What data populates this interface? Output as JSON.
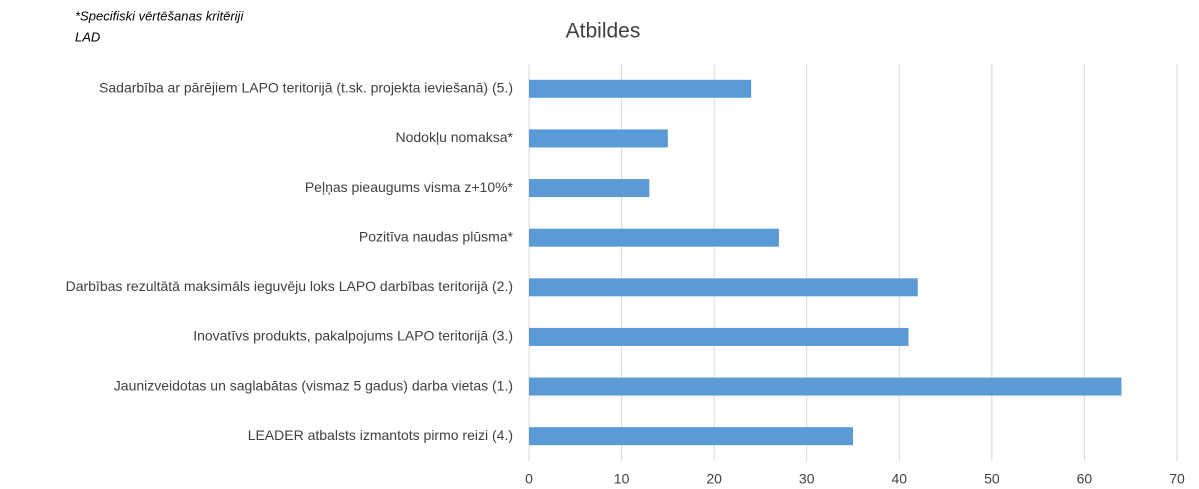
{
  "chart_data": {
    "type": "barh",
    "title": "Atbildes",
    "annotations": [
      "*Specifiski vērtēšanas kritēriji",
      "LAD"
    ],
    "categories": [
      "Sadarbība ar pārējiem LAPO teritorijā (t.sk. projekta ieviešanā) (5.)",
      "Nodokļu nomaksa*",
      "Peļņas pieaugums visma z+10%*",
      "Pozitīva naudas plūsma*",
      "Darbības rezultātā maksimāls ieguvēju loks LAPO darbības teritorijā (2.)",
      "Inovatīvs produkts, pakalpojums LAPO teritorijā (3.)",
      "Jaunizveidotas un saglabātas (vismaz 5 gadus) darba vietas (1.)",
      "LEADER atbalsts izmantots pirmo reizi (4.)"
    ],
    "values": [
      24,
      15,
      13,
      27,
      42,
      41,
      64,
      35
    ],
    "color": "#5b9bd5",
    "xlim": [
      0,
      70
    ],
    "xticks": [
      0,
      10,
      20,
      30,
      40,
      50,
      60,
      70
    ],
    "grid": true
  }
}
